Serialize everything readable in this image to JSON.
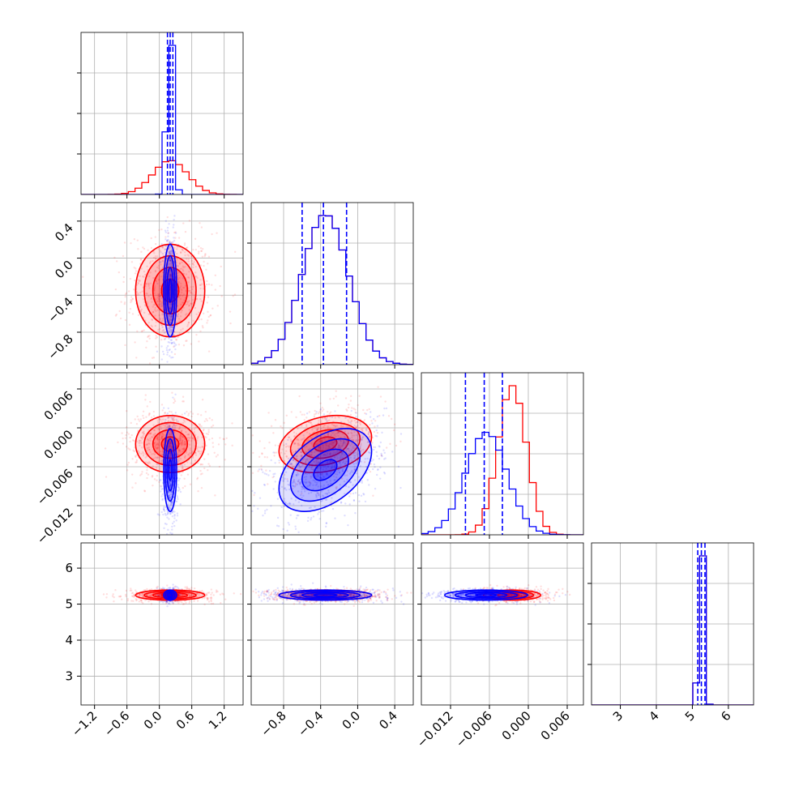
{
  "chart_data": {
    "type": "corner",
    "dimensions": 4,
    "colors": {
      "series_a": "#0000ff",
      "series_b": "#ff0000",
      "grid": "#b0b0b0",
      "frame": "#000000"
    },
    "series": [
      {
        "color": "#0000ff",
        "means": [
          0.2,
          -0.35,
          -0.0065,
          5.25
        ],
        "sds": [
          0.06,
          0.25,
          0.0032,
          0.07
        ]
      },
      {
        "color": "#ff0000",
        "means": [
          0.2,
          -0.35,
          -0.0025,
          5.25
        ],
        "sds": [
          0.32,
          0.25,
          0.0022,
          0.07
        ]
      }
    ],
    "correlations": [
      {
        "pair": [
          1,
          0
        ],
        "series_a": 0.0,
        "series_b": 0.0
      },
      {
        "pair": [
          2,
          0
        ],
        "series_a": 0.0,
        "series_b": 0.0
      },
      {
        "pair": [
          2,
          1
        ],
        "series_a": 0.45,
        "series_b": 0.25
      },
      {
        "pair": [
          3,
          0
        ],
        "series_a": 0.0,
        "series_b": 0.0
      },
      {
        "pair": [
          3,
          1
        ],
        "series_a": 0.0,
        "series_b": 0.0
      },
      {
        "pair": [
          3,
          2
        ],
        "series_a": 0.0,
        "series_b": 0.0
      }
    ],
    "quantile_lines": [
      [
        0.15,
        0.2,
        0.25
      ],
      [
        -0.6,
        -0.37,
        -0.12
      ],
      [
        -0.0097,
        -0.0068,
        -0.004
      ],
      [
        5.15,
        5.25,
        5.35
      ]
    ],
    "ranges": [
      [
        -1.45,
        1.55
      ],
      [
        -1.15,
        0.6
      ],
      [
        -0.0165,
        0.0085
      ],
      [
        2.2,
        6.7
      ]
    ],
    "ticks": [
      {
        "values": [
          -1.2,
          -0.6,
          0.0,
          0.6,
          1.2
        ],
        "labels": [
          "−1.2",
          "−0.6",
          "0.0",
          "0.6",
          "1.2"
        ]
      },
      {
        "values": [
          -0.8,
          -0.4,
          0.0,
          0.4
        ],
        "labels": [
          "−0.8",
          "−0.4",
          "0.0",
          "0.4"
        ]
      },
      {
        "values": [
          -0.012,
          -0.006,
          0.0,
          0.006
        ],
        "labels": [
          "−0.012",
          "−0.006",
          "0.000",
          "0.006"
        ]
      },
      {
        "values": [
          3,
          4,
          5,
          6
        ],
        "labels": [
          "3",
          "4",
          "5",
          "6"
        ]
      }
    ],
    "grid": true,
    "legend": "none"
  }
}
